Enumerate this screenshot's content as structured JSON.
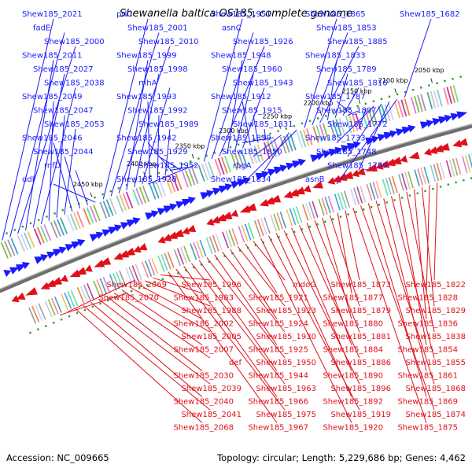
{
  "title": "Shewanella baltica OS185, complete genome",
  "footer": {
    "accession": "Accession: NC_009665",
    "summary": "Topology: circular; Length: 5,229,686 bp; Genes: 4,462"
  },
  "ticks": [
    "2050 kbp",
    "2100 kbp",
    "2150 kbp",
    "2200 kbp",
    "2250 kbp",
    "2300 kbp",
    "2350 kbp",
    "2400 kbp",
    "2450 kbp"
  ],
  "colors": {
    "forward": "#1a1aff",
    "reverse": "#e0101a",
    "backbone": "#888888"
  },
  "top_labels": [
    "Shew185_2021",
    "fadE",
    "Shew185_2000",
    "Shew185_2011",
    "Shew185_2027",
    "Shew185_2038",
    "Shew185_2049",
    "Shew185_2047",
    "Shew185_2053",
    "Shew185_2046",
    "Shew185_2044",
    "rnfD",
    "ddl",
    "prlC",
    "Shew185_2001",
    "Shew185_2010",
    "Shew185_1999",
    "Shew185_1998",
    "rnhA",
    "Shew185_1993",
    "Shew185_1992",
    "Shew185_1989",
    "Shew185_1942",
    "Shew185_1929",
    "Shew185_1952",
    "Shew185_1928",
    "Shew185_1951",
    "asnC",
    "Shew185_1926",
    "Shew185_1948",
    "Shew185_1960",
    "Shew185_1943",
    "Shew185_1912",
    "Shew185_1915",
    "Shew185_1831",
    "Shew185_1839",
    "Shew185_1850",
    "rbgA",
    "Shew185_1834",
    "Shew185_1865",
    "Shew185_1853",
    "Shew185_1885",
    "Shew185_1833",
    "Shew185_1789",
    "Shew185_1816",
    "Shew185_1787",
    "Shew185_1807",
    "Shew185_1772",
    "Shew185_1733",
    "Shew185_1748",
    "Shew185_1759",
    "asnB",
    "Shew185_1682"
  ],
  "bottom_labels": [
    "Shew185_1822",
    "Shew185_1828",
    "Shew185_1829",
    "Shew185_1836",
    "Shew185_1838",
    "Shew185_1854",
    "Shew185_1855",
    "Shew185_1861",
    "Shew185_1868",
    "Shew185_1869",
    "Shew185_1874",
    "Shew185_1875",
    "Shew185_1873",
    "Shew185_1877",
    "Shew185_1879",
    "Shew185_1880",
    "Shew185_1881",
    "Shew185_1884",
    "Shew185_1886",
    "Shew185_1890",
    "Shew185_1896",
    "Shew185_1892",
    "Shew185_1919",
    "Shew185_1920",
    "mdoG",
    "Shew185_1921",
    "Shew185_1923",
    "Shew185_1924",
    "Shew185_1930",
    "Shew185_1925",
    "Shew185_1950",
    "Shew185_1944",
    "Shew185_1963",
    "Shew185_1966",
    "Shew185_1975",
    "Shew185_1967",
    "Shew185_1996",
    "Shew185_1983",
    "Shew185_1988",
    "Shew185_2002",
    "Shew185_2005",
    "Shew185_2007",
    "def",
    "Shew185_2030",
    "Shew185_2039",
    "Shew185_2040",
    "Shew185_2041",
    "Shew185_2068",
    "Shew185_2069",
    "Shew185_2070"
  ]
}
